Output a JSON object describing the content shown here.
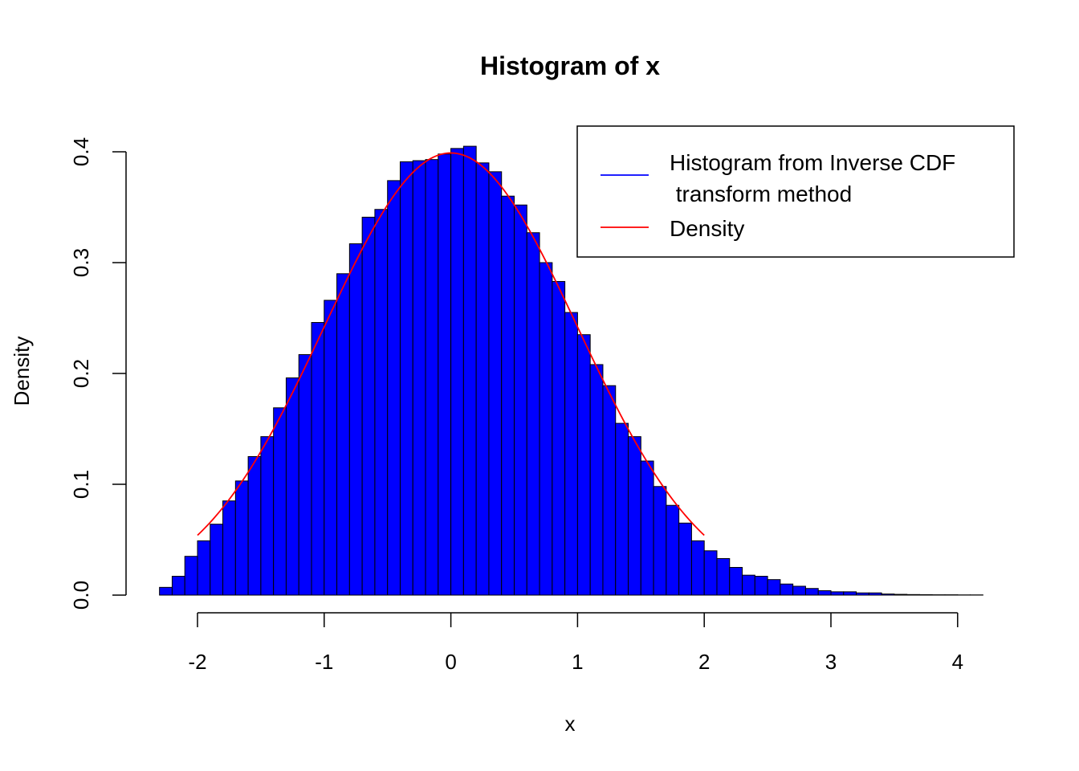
{
  "chart_data": {
    "type": "bar",
    "title": "Histogram of x",
    "xlabel": "x",
    "ylabel": "Density",
    "xlim": [
      -2.3,
      4.2
    ],
    "ylim": [
      0,
      0.4
    ],
    "x_ticks": [
      -2,
      -1,
      0,
      1,
      2,
      3,
      4
    ],
    "x_tick_labels": [
      "-2",
      "-1",
      "0",
      "1",
      "2",
      "3",
      "4"
    ],
    "y_ticks": [
      0,
      0.1,
      0.2,
      0.3,
      0.4
    ],
    "y_tick_labels": [
      "0.0",
      "0.1",
      "0.2",
      "0.3",
      "0.4"
    ],
    "grid": false,
    "bin_width": 0.1,
    "bin_start": -2.3,
    "histogram": {
      "color": "#0000ff",
      "values": [
        0.007,
        0.017,
        0.035,
        0.049,
        0.064,
        0.085,
        0.103,
        0.125,
        0.143,
        0.169,
        0.196,
        0.217,
        0.246,
        0.266,
        0.29,
        0.317,
        0.341,
        0.348,
        0.374,
        0.391,
        0.392,
        0.393,
        0.398,
        0.403,
        0.405,
        0.39,
        0.382,
        0.36,
        0.352,
        0.327,
        0.3,
        0.283,
        0.255,
        0.235,
        0.208,
        0.189,
        0.155,
        0.143,
        0.121,
        0.098,
        0.081,
        0.065,
        0.049,
        0.04,
        0.033,
        0.025,
        0.018,
        0.017,
        0.014,
        0.01,
        0.008,
        0.006,
        0.004,
        0.003,
        0.003,
        0.002,
        0.002,
        0.001,
        0.0007,
        0.0005,
        0.0004,
        0.0003,
        0.0003,
        0.0002,
        0.0002
      ]
    },
    "density": {
      "color": "#ff0000",
      "x_range": [
        -2,
        2
      ],
      "function": "normal(0,1)"
    },
    "legend": {
      "placement": "top-right",
      "entries": [
        {
          "line1": "Histogram from Inverse CDF",
          "line2": " transform method",
          "color": "#0000ff"
        },
        {
          "line1": "Density",
          "color": "#ff0000"
        }
      ]
    }
  }
}
